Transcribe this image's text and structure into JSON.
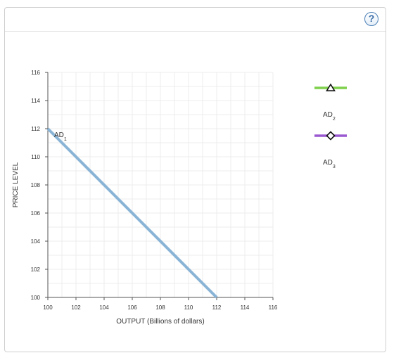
{
  "help": {
    "label": "?"
  },
  "legend": [
    {
      "name": "AD",
      "sub": "2",
      "color": "#7ed04b",
      "marker": "triangle-icon"
    },
    {
      "name": "AD",
      "sub": "3",
      "color": "#9a59d1",
      "marker": "diamond-icon"
    }
  ],
  "chart_data": {
    "type": "line",
    "xlabel": "OUTPUT (Billions of dollars)",
    "ylabel": "PRICE LEVEL",
    "xlim": [
      100,
      116
    ],
    "ylim": [
      100,
      116
    ],
    "xticks": [
      100,
      102,
      104,
      106,
      108,
      110,
      112,
      114,
      116
    ],
    "yticks": [
      100,
      102,
      104,
      106,
      108,
      110,
      112,
      114,
      116
    ],
    "grid": true,
    "series": [
      {
        "name": "AD",
        "sub": "1",
        "color": "#8ab4d6",
        "points": [
          [
            100,
            112
          ],
          [
            112,
            100
          ]
        ]
      }
    ]
  }
}
